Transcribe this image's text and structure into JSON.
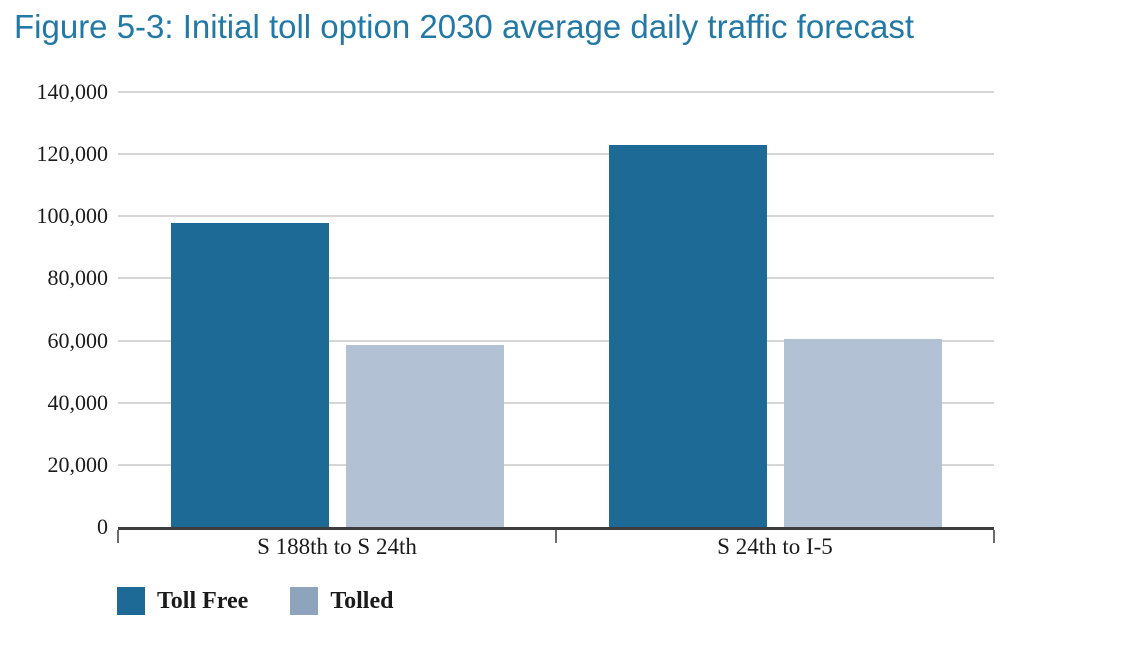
{
  "figure": {
    "title": "Figure 5-3: Initial toll option 2030 average daily traffic forecast",
    "title_color": "#2379a5"
  },
  "chart_data": {
    "type": "bar",
    "title": "Figure 5-3: Initial toll option 2030 average daily traffic forecast",
    "categories": [
      "S 188th to S 24th",
      "S 24th to I-5"
    ],
    "series": [
      {
        "name": "Toll Free",
        "color": "#1d6a96",
        "legend_color": "#1d6a96",
        "values": [
          98000,
          123000
        ]
      },
      {
        "name": "Tolled",
        "color": "#b2c2d4",
        "legend_color": "#8ea4bd",
        "values": [
          58500,
          60500
        ]
      }
    ],
    "xlabel": "",
    "ylabel": "",
    "ylim": [
      0,
      140000
    ],
    "ytick_step": 20000,
    "yticks": [
      {
        "value": 0,
        "label": "0"
      },
      {
        "value": 20000,
        "label": "20,000"
      },
      {
        "value": 40000,
        "label": "40,000"
      },
      {
        "value": 60000,
        "label": "60,000"
      },
      {
        "value": 80000,
        "label": "80,000"
      },
      {
        "value": 100000,
        "label": "100,000"
      },
      {
        "value": 120000,
        "label": "120,000"
      },
      {
        "value": 140000,
        "label": "140,000"
      }
    ],
    "grid": "horizontal-only",
    "gridline_color": "#d6d6d6",
    "axis_color": "#3d3d3d",
    "legend_position": "bottom-left"
  }
}
